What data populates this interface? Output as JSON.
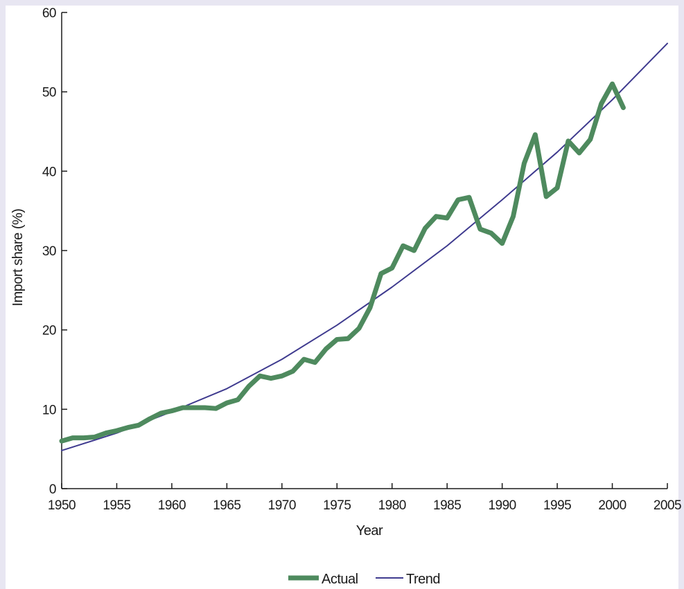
{
  "chart_data": {
    "type": "line",
    "title": "",
    "xlabel": "Year",
    "ylabel": "Import share (%)",
    "xlim": [
      1950,
      2005
    ],
    "ylim": [
      0,
      60
    ],
    "xticks": [
      1950,
      1955,
      1960,
      1965,
      1970,
      1975,
      1980,
      1985,
      1990,
      1995,
      2000,
      2005
    ],
    "yticks": [
      0,
      10,
      20,
      30,
      40,
      50,
      60
    ],
    "grid": false,
    "legend_position": "bottom-center",
    "series": [
      {
        "name": "Actual",
        "color": "#4e8a5e",
        "x": [
          1950,
          1951,
          1952,
          1953,
          1954,
          1955,
          1956,
          1957,
          1958,
          1959,
          1960,
          1961,
          1962,
          1963,
          1964,
          1965,
          1966,
          1967,
          1968,
          1969,
          1970,
          1971,
          1972,
          1973,
          1974,
          1975,
          1976,
          1977,
          1978,
          1979,
          1980,
          1981,
          1982,
          1983,
          1984,
          1985,
          1986,
          1987,
          1988,
          1989,
          1990,
          1991,
          1992,
          1993,
          1994,
          1995,
          1996,
          1997,
          1998,
          1999,
          2000,
          2001
        ],
        "values": [
          6.0,
          6.4,
          6.4,
          6.5,
          7.0,
          7.3,
          7.7,
          8.0,
          8.8,
          9.5,
          9.8,
          10.2,
          10.2,
          10.2,
          10.1,
          10.8,
          11.2,
          12.9,
          14.2,
          13.9,
          14.2,
          14.8,
          16.3,
          15.9,
          17.6,
          18.8,
          18.9,
          20.2,
          22.8,
          27.1,
          27.8,
          30.6,
          30.0,
          32.8,
          34.3,
          34.1,
          36.4,
          36.7,
          32.7,
          32.2,
          30.9,
          34.3,
          41.0,
          44.6,
          36.8,
          37.9,
          43.8,
          42.3,
          44.0,
          48.5,
          51.0,
          48.0
        ]
      },
      {
        "name": "Trend",
        "color": "#3f3b8f",
        "x": [
          1950,
          1955,
          1960,
          1965,
          1970,
          1975,
          1980,
          1985,
          1990,
          1995,
          2000,
          2005
        ],
        "values": [
          4.8,
          7.0,
          9.7,
          12.6,
          16.3,
          20.6,
          25.4,
          30.6,
          36.4,
          42.4,
          49.0,
          56.1
        ]
      }
    ]
  }
}
